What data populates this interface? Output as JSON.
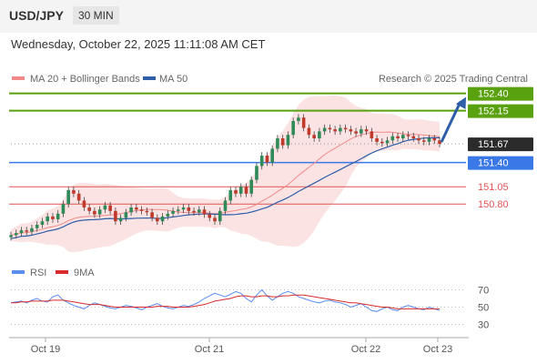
{
  "header": {
    "symbol": "USD/JPY",
    "timeframe": "30 MIN",
    "timestamp": "Wednesday, October 22, 2025 11:11:08 AM CET",
    "credit": "Research © 2025 Trading Central"
  },
  "legend": {
    "ma20": "MA 20 + Bollinger Bands",
    "ma50": "MA 50",
    "rsi": "RSI",
    "ma9": "9MA"
  },
  "colors": {
    "resistance": "#5aa10f",
    "pivot": "#3b78e7",
    "support": "#e05555",
    "current": "#2b2b2b",
    "bollinger_fill": "#fbe3e3",
    "ma20": "#f08a8a",
    "ma50": "#2f5ea8",
    "rsi": "#5b8def",
    "ma9_rsi": "#d92b2b",
    "candle_up": "#2e8b57",
    "candle_down": "#c0392b",
    "arrow": "#2f5ea8"
  },
  "chart_data": [
    {
      "type": "candlestick",
      "x_labels": [
        "Oct 19",
        "Oct 21",
        "Oct 22",
        "Oct 23"
      ],
      "y_axis": "price",
      "levels": [
        {
          "label": "152.40",
          "value": 152.4,
          "kind": "resistance"
        },
        {
          "label": "152.15",
          "value": 152.15,
          "kind": "resistance"
        },
        {
          "label": "151.67",
          "value": 151.67,
          "kind": "current"
        },
        {
          "label": "151.40",
          "value": 151.4,
          "kind": "pivot"
        },
        {
          "label": "151.05",
          "value": 151.05,
          "kind": "support"
        },
        {
          "label": "150.80",
          "value": 150.8,
          "kind": "support"
        }
      ],
      "ylim": [
        150.0,
        152.5
      ],
      "close": [
        150.35,
        150.38,
        150.42,
        150.4,
        150.45,
        150.5,
        150.55,
        150.62,
        150.58,
        150.66,
        150.8,
        151.0,
        150.95,
        150.85,
        150.75,
        150.7,
        150.65,
        150.72,
        150.78,
        150.7,
        150.55,
        150.6,
        150.68,
        150.75,
        150.72,
        150.7,
        150.68,
        150.6,
        150.55,
        150.62,
        150.66,
        150.7,
        150.72,
        150.75,
        150.7,
        150.68,
        150.72,
        150.65,
        150.6,
        150.55,
        150.7,
        150.85,
        151.0,
        150.95,
        151.05,
        150.95,
        151.15,
        151.35,
        151.5,
        151.4,
        151.6,
        151.75,
        151.65,
        151.8,
        152.0,
        152.05,
        151.9,
        151.8,
        151.75,
        151.85,
        151.9,
        151.88,
        151.85,
        151.9,
        151.88,
        151.85,
        151.82,
        151.88,
        151.85,
        151.75,
        151.7,
        151.68,
        151.72,
        151.78,
        151.75,
        151.8,
        151.78,
        151.75,
        151.72,
        151.7,
        151.75,
        151.72,
        151.67
      ]
    },
    {
      "type": "line",
      "name": "RSI",
      "yticks": [
        70,
        50,
        30
      ],
      "ylim": [
        20,
        80
      ],
      "rsi": [
        55,
        56,
        57,
        55,
        58,
        60,
        57,
        56,
        62,
        64,
        58,
        55,
        52,
        50,
        48,
        52,
        55,
        53,
        51,
        49,
        48,
        50,
        52,
        51,
        49,
        47,
        50,
        52,
        54,
        51,
        49,
        48,
        50,
        52,
        51,
        53,
        56,
        60,
        63,
        66,
        64,
        62,
        65,
        68,
        66,
        60,
        56,
        64,
        70,
        63,
        58,
        62,
        66,
        68,
        66,
        62,
        60,
        58,
        56,
        55,
        57,
        58,
        56,
        55,
        53,
        50,
        52,
        54,
        50,
        46,
        45,
        48,
        50,
        47,
        46,
        50,
        52,
        50,
        48,
        47,
        50,
        48,
        46
      ],
      "ma9": [
        55,
        55,
        56,
        56,
        57,
        57,
        57,
        57,
        58,
        58,
        58,
        57,
        56,
        55,
        54,
        53,
        53,
        53,
        52,
        51,
        50,
        50,
        50,
        50,
        50,
        50,
        50,
        50,
        51,
        51,
        51,
        50,
        50,
        50,
        50,
        51,
        52,
        53,
        55,
        57,
        58,
        59,
        60,
        62,
        63,
        63,
        62,
        62,
        63,
        63,
        62,
        62,
        63,
        63,
        64,
        64,
        64,
        63,
        62,
        61,
        60,
        59,
        58,
        57,
        56,
        55,
        55,
        54,
        53,
        52,
        51,
        50,
        50,
        49,
        48,
        48,
        48,
        48,
        48,
        48,
        48,
        48,
        48
      ]
    }
  ]
}
